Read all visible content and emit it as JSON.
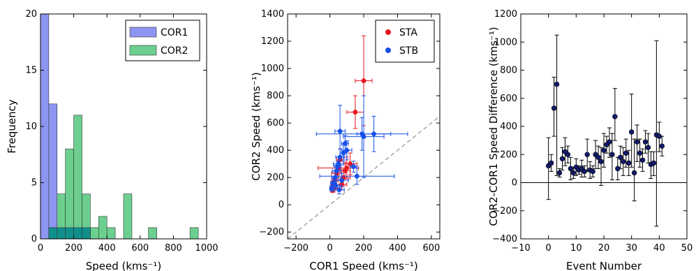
{
  "chart_data": [
    {
      "type": "bar",
      "xlabel": "Speed (kms⁻¹)",
      "ylabel": "Frequency",
      "xlim": [
        0,
        1000
      ],
      "ylim": [
        0,
        20
      ],
      "xticks": [
        "0",
        "200",
        "400",
        "600",
        "800",
        "1000"
      ],
      "yticks": [
        "0",
        "5",
        "10",
        "15",
        "20"
      ],
      "bin_width": 50,
      "legend_position": "top-right",
      "overlap_color": "#118f8c",
      "series": [
        {
          "name": "COR1",
          "color": "#8c95f0",
          "bins": [
            [
              0,
              50,
              20
            ],
            [
              50,
              100,
              12
            ],
            [
              100,
              150,
              1
            ],
            [
              150,
              200,
              1
            ],
            [
              200,
              250,
              1
            ],
            [
              250,
              300,
              1
            ]
          ]
        },
        {
          "name": "COR2",
          "color": "#6ccf8f",
          "bins": [
            [
              50,
              100,
              1
            ],
            [
              100,
              150,
              4
            ],
            [
              150,
              200,
              8
            ],
            [
              200,
              250,
              11
            ],
            [
              250,
              300,
              4
            ],
            [
              300,
              350,
              1
            ],
            [
              350,
              400,
              2
            ],
            [
              400,
              450,
              1
            ],
            [
              500,
              550,
              4
            ],
            [
              650,
              700,
              1
            ],
            [
              900,
              950,
              1
            ]
          ]
        }
      ]
    },
    {
      "type": "scatter",
      "xlabel": "COR1 Speed (kms⁻¹)",
      "ylabel": "COR2 Speed (kms⁻¹)",
      "xlim": [
        -250,
        650
      ],
      "ylim": [
        -250,
        1400
      ],
      "xticks": [
        "−200",
        "0",
        "200",
        "400",
        "600"
      ],
      "yticks": [
        "−200",
        "0",
        "200",
        "400",
        "600",
        "800",
        "1000",
        "1200",
        "1400"
      ],
      "reference_line": "y = x",
      "legend_position": "top-right",
      "series": [
        {
          "name": "STA",
          "color": "#e8161c",
          "points": [
            [
              200,
              910,
              50,
              330
            ],
            [
              150,
              680,
              50,
              120
            ],
            [
              100,
              270,
              60,
              80
            ],
            [
              80,
              200,
              40,
              60
            ],
            [
              60,
              330,
              20,
              80
            ],
            [
              50,
              270,
              120,
              50
            ],
            [
              40,
              230,
              30,
              40
            ],
            [
              30,
              180,
              20,
              30
            ],
            [
              20,
              150,
              15,
              30
            ],
            [
              25,
              120,
              20,
              25
            ],
            [
              15,
              110,
              10,
              20
            ],
            [
              70,
              150,
              30,
              40
            ],
            [
              90,
              250,
              30,
              60
            ],
            [
              120,
              300,
              40,
              80
            ]
          ]
        },
        {
          "name": "STB",
          "color": "#1750e8",
          "points": [
            [
              60,
              540,
              30,
              190
            ],
            [
              190,
              520,
              270,
              120
            ],
            [
              200,
              500,
              120,
              300
            ],
            [
              260,
              520,
              100,
              130
            ],
            [
              90,
              450,
              20,
              60
            ],
            [
              80,
              380,
              20,
              60
            ],
            [
              60,
              350,
              25,
              60
            ],
            [
              50,
              300,
              30,
              50
            ],
            [
              40,
              250,
              25,
              40
            ],
            [
              30,
              200,
              20,
              40
            ],
            [
              140,
              280,
              20,
              40
            ],
            [
              160,
              210,
              220,
              60
            ],
            [
              20,
              160,
              15,
              30
            ],
            [
              35,
              140,
              20,
              30
            ],
            [
              10,
              120,
              10,
              20
            ],
            [
              55,
              110,
              30,
              30
            ],
            [
              70,
              180,
              40,
              50
            ],
            [
              100,
              400,
              30,
              70
            ],
            [
              45,
              280,
              20,
              40
            ]
          ]
        }
      ]
    },
    {
      "type": "scatter",
      "xlabel": "Event Number",
      "ylabel": "COR2-COR1 Speed Difference (kms⁻¹)",
      "xlim": [
        -10,
        50
      ],
      "ylim": [
        -400,
        1200
      ],
      "xticks": [
        "−10",
        "0",
        "10",
        "20",
        "30",
        "40",
        "50"
      ],
      "yticks": [
        "−400",
        "−200",
        "0",
        "200",
        "400",
        "600",
        "800",
        "1000",
        "1200"
      ],
      "zero_line": true,
      "marker_color": "#121a6b",
      "points": [
        [
          0,
          120,
          240,
          200
        ],
        [
          1,
          140,
          60,
          60
        ],
        [
          2,
          530,
          200,
          220
        ],
        [
          3,
          700,
          650,
          350
        ],
        [
          4,
          70,
          30,
          30
        ],
        [
          5,
          170,
          80,
          80
        ],
        [
          6,
          220,
          100,
          100
        ],
        [
          7,
          200,
          60,
          60
        ],
        [
          8,
          100,
          80,
          80
        ],
        [
          9,
          70,
          40,
          40
        ],
        [
          10,
          110,
          60,
          60
        ],
        [
          11,
          90,
          30,
          30
        ],
        [
          12,
          100,
          60,
          60
        ],
        [
          13,
          80,
          40,
          40
        ],
        [
          14,
          200,
          120,
          110
        ],
        [
          15,
          90,
          60,
          60
        ],
        [
          16,
          80,
          40,
          40
        ],
        [
          17,
          200,
          100,
          100
        ],
        [
          18,
          180,
          80,
          80
        ],
        [
          19,
          150,
          170,
          100
        ],
        [
          20,
          230,
          120,
          120
        ],
        [
          21,
          270,
          60,
          60
        ],
        [
          22,
          290,
          110,
          100
        ],
        [
          23,
          200,
          180,
          150
        ],
        [
          24,
          470,
          170,
          200
        ],
        [
          25,
          100,
          80,
          80
        ],
        [
          26,
          180,
          80,
          80
        ],
        [
          27,
          150,
          100,
          100
        ],
        [
          28,
          210,
          100,
          100
        ],
        [
          29,
          140,
          90,
          90
        ],
        [
          30,
          360,
          250,
          270
        ],
        [
          31,
          70,
          200,
          240
        ],
        [
          32,
          290,
          140,
          120
        ],
        [
          33,
          210,
          100,
          100
        ],
        [
          34,
          160,
          80,
          80
        ],
        [
          35,
          290,
          80,
          80
        ],
        [
          36,
          250,
          110,
          100
        ],
        [
          37,
          130,
          100,
          90
        ],
        [
          38,
          140,
          90,
          80
        ],
        [
          39,
          340,
          650,
          670
        ],
        [
          40,
          330,
          110,
          100
        ],
        [
          41,
          260,
          70,
          70
        ]
      ]
    }
  ]
}
